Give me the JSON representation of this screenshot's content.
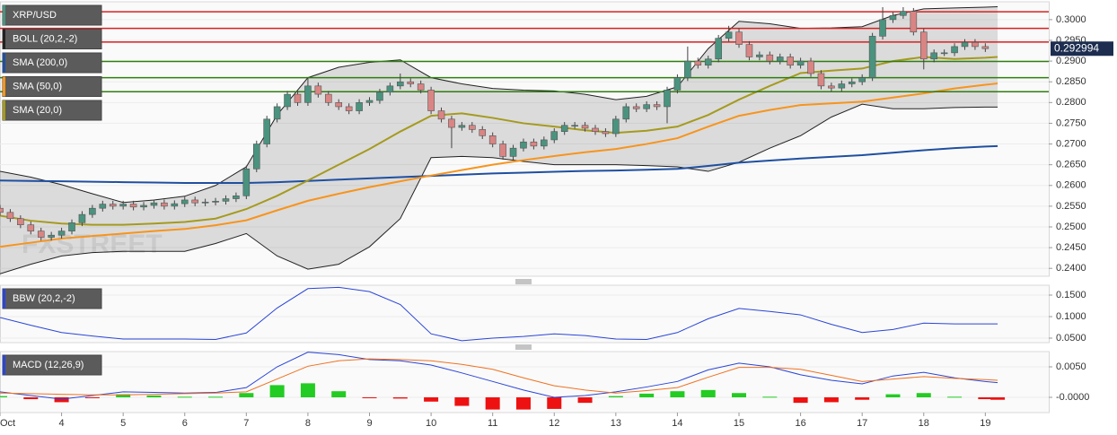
{
  "chart_data": [
    {
      "type": "candlestick",
      "watermark": "FXSTREET",
      "xlim": [
        3,
        20.03
      ],
      "ylim": [
        0.2381,
        0.3043
      ],
      "yticks": [
        {
          "value": 0.24,
          "label": "0.2400"
        },
        {
          "value": 0.245,
          "label": "0.2450"
        },
        {
          "value": 0.25,
          "label": "0.2500"
        },
        {
          "value": 0.255,
          "label": "0.2550"
        },
        {
          "value": 0.26,
          "label": "0.2600"
        },
        {
          "value": 0.265,
          "label": "0.2650"
        },
        {
          "value": 0.27,
          "label": "0.2700"
        },
        {
          "value": 0.275,
          "label": "0.2750"
        },
        {
          "value": 0.28,
          "label": "0.2800"
        },
        {
          "value": 0.285,
          "label": "0.2850"
        },
        {
          "value": 0.29,
          "label": "0.2900"
        },
        {
          "value": 0.295,
          "label": "0.2950"
        },
        {
          "value": 0.3,
          "label": "0.3000"
        }
      ],
      "last_price": 0.292994,
      "levels": [
        {
          "value": 0.3019,
          "color": "#d62020"
        },
        {
          "value": 0.2979,
          "color": "#d62020"
        },
        {
          "value": 0.2946,
          "color": "#d62020"
        },
        {
          "value": 0.2899,
          "color": "#2e7d0f"
        },
        {
          "value": 0.286,
          "color": "#2e7d0f"
        },
        {
          "value": 0.2826,
          "color": "#2e7d0f"
        }
      ],
      "ohlc": {
        "name": "XRP/USD",
        "up_color": "#4a937f",
        "down_color": "#d98584",
        "x": [
          3,
          3.1667,
          3.3333,
          3.5,
          3.6667,
          3.8333,
          4,
          4.1667,
          4.3333,
          4.5,
          4.6667,
          4.8333,
          5,
          5.1667,
          5.3333,
          5.5,
          5.6667,
          5.8333,
          6,
          6.1667,
          6.3333,
          6.5,
          6.6667,
          6.8333,
          7,
          7.1667,
          7.3333,
          7.5,
          7.6667,
          7.8333,
          8,
          8.1667,
          8.3333,
          8.5,
          8.6667,
          8.8333,
          9,
          9.1667,
          9.3333,
          9.5,
          9.6667,
          9.8333,
          10,
          10.1667,
          10.3333,
          10.5,
          10.6667,
          10.8333,
          11,
          11.1667,
          11.3333,
          11.5,
          11.6667,
          11.8333,
          12,
          12.1667,
          12.3333,
          12.5,
          12.6667,
          12.8333,
          13,
          13.1667,
          13.3333,
          13.5,
          13.6667,
          13.8333,
          14,
          14.1667,
          14.3333,
          14.5,
          14.6667,
          14.8333,
          15,
          15.1667,
          15.3333,
          15.5,
          15.6667,
          15.8333,
          16,
          16.1667,
          16.3333,
          16.5,
          16.6667,
          16.8333,
          17,
          17.1667,
          17.3333,
          17.5,
          17.6667,
          17.8333,
          18,
          18.1667,
          18.3333,
          18.5,
          18.6667,
          18.8333,
          19
        ],
        "open": [
          0.2545,
          0.2535,
          0.252,
          0.2505,
          0.249,
          0.2475,
          0.248,
          0.249,
          0.251,
          0.253,
          0.2545,
          0.2555,
          0.255,
          0.2555,
          0.2548,
          0.2552,
          0.2558,
          0.255,
          0.2556,
          0.2565,
          0.2558,
          0.256,
          0.2562,
          0.2568,
          0.2575,
          0.264,
          0.27,
          0.276,
          0.279,
          0.282,
          0.28,
          0.284,
          0.282,
          0.28,
          0.279,
          0.278,
          0.28,
          0.2805,
          0.2825,
          0.284,
          0.285,
          0.2845,
          0.283,
          0.278,
          0.276,
          0.274,
          0.2745,
          0.2735,
          0.272,
          0.27,
          0.267,
          0.269,
          0.2705,
          0.2695,
          0.271,
          0.273,
          0.2745,
          0.2745,
          0.2738,
          0.273,
          0.2725,
          0.276,
          0.279,
          0.2785,
          0.2795,
          0.279,
          0.283,
          0.286,
          0.29,
          0.289,
          0.2905,
          0.2955,
          0.297,
          0.294,
          0.291,
          0.2915,
          0.29,
          0.291,
          0.289,
          0.29,
          0.287,
          0.284,
          0.2835,
          0.2845,
          0.285,
          0.286,
          0.296,
          0.3,
          0.301,
          0.302,
          0.297,
          0.2905,
          0.292,
          0.292,
          0.2935,
          0.2945,
          0.2935
        ],
        "high": [
          0.2553,
          0.2543,
          0.2528,
          0.2513,
          0.2498,
          0.2488,
          0.2498,
          0.2518,
          0.2538,
          0.2553,
          0.2563,
          0.2563,
          0.2563,
          0.2563,
          0.256,
          0.2566,
          0.2566,
          0.2564,
          0.2573,
          0.2573,
          0.2568,
          0.257,
          0.2576,
          0.2583,
          0.2648,
          0.2708,
          0.2768,
          0.2798,
          0.2828,
          0.2828,
          0.286,
          0.2848,
          0.2828,
          0.2808,
          0.2798,
          0.2808,
          0.2813,
          0.2833,
          0.2848,
          0.287,
          0.2858,
          0.2853,
          0.2838,
          0.2788,
          0.2768,
          0.2753,
          0.2753,
          0.2743,
          0.2728,
          0.2708,
          0.2698,
          0.2713,
          0.2713,
          0.2718,
          0.2738,
          0.2753,
          0.2753,
          0.2753,
          0.2746,
          0.2738,
          0.2768,
          0.2798,
          0.2798,
          0.2803,
          0.2803,
          0.2838,
          0.2868,
          0.2935,
          0.2908,
          0.2913,
          0.2963,
          0.2985,
          0.2978,
          0.2948,
          0.2923,
          0.2923,
          0.2918,
          0.2918,
          0.2908,
          0.2908,
          0.2878,
          0.2848,
          0.2853,
          0.2858,
          0.2868,
          0.2968,
          0.303,
          0.3018,
          0.303,
          0.3028,
          0.2978,
          0.2928,
          0.2928,
          0.2943,
          0.2953,
          0.2953,
          0.2943
        ],
        "low": [
          0.2527,
          0.2512,
          0.2497,
          0.2482,
          0.2467,
          0.2467,
          0.2472,
          0.2482,
          0.2502,
          0.2522,
          0.2537,
          0.2542,
          0.2542,
          0.254,
          0.254,
          0.2544,
          0.2542,
          0.2542,
          0.2548,
          0.255,
          0.255,
          0.2552,
          0.2554,
          0.256,
          0.2567,
          0.2632,
          0.2692,
          0.2752,
          0.2782,
          0.2792,
          0.2792,
          0.2812,
          0.2792,
          0.2782,
          0.2772,
          0.2772,
          0.2792,
          0.2797,
          0.2817,
          0.2832,
          0.2837,
          0.2822,
          0.2772,
          0.2752,
          0.269,
          0.2732,
          0.2727,
          0.2712,
          0.2692,
          0.2662,
          0.2662,
          0.2682,
          0.2687,
          0.2687,
          0.2702,
          0.2722,
          0.2737,
          0.273,
          0.2722,
          0.2717,
          0.2717,
          0.2752,
          0.2777,
          0.2777,
          0.2782,
          0.275,
          0.2822,
          0.2852,
          0.2882,
          0.2882,
          0.2897,
          0.2947,
          0.2932,
          0.2902,
          0.2902,
          0.2892,
          0.2892,
          0.2882,
          0.2882,
          0.2862,
          0.2832,
          0.2827,
          0.2827,
          0.2837,
          0.2842,
          0.2852,
          0.2952,
          0.2992,
          0.3002,
          0.2962,
          0.288,
          0.2897,
          0.2912,
          0.2912,
          0.2927,
          0.2927,
          0.2922
        ],
        "close": [
          0.2535,
          0.252,
          0.2505,
          0.249,
          0.2475,
          0.248,
          0.249,
          0.251,
          0.253,
          0.2545,
          0.2555,
          0.255,
          0.2555,
          0.2548,
          0.2552,
          0.2558,
          0.255,
          0.2556,
          0.2565,
          0.2558,
          0.256,
          0.2562,
          0.2568,
          0.2575,
          0.264,
          0.27,
          0.276,
          0.279,
          0.282,
          0.28,
          0.284,
          0.282,
          0.28,
          0.279,
          0.278,
          0.28,
          0.2805,
          0.2825,
          0.284,
          0.285,
          0.2845,
          0.283,
          0.278,
          0.276,
          0.274,
          0.2745,
          0.2735,
          0.272,
          0.27,
          0.267,
          0.269,
          0.2705,
          0.2695,
          0.271,
          0.273,
          0.2745,
          0.2745,
          0.2738,
          0.273,
          0.2725,
          0.276,
          0.279,
          0.2785,
          0.2795,
          0.279,
          0.283,
          0.286,
          0.29,
          0.289,
          0.2905,
          0.2955,
          0.297,
          0.294,
          0.291,
          0.2915,
          0.29,
          0.291,
          0.289,
          0.29,
          0.287,
          0.284,
          0.2835,
          0.2845,
          0.285,
          0.286,
          0.296,
          0.3,
          0.301,
          0.302,
          0.297,
          0.2905,
          0.292,
          0.292,
          0.2935,
          0.2945,
          0.2935,
          0.293
        ]
      },
      "x": [
        3,
        3.5,
        4,
        4.5,
        5,
        5.5,
        6,
        6.5,
        7,
        7.5,
        8,
        8.5,
        9,
        9.5,
        10,
        10.5,
        11,
        11.5,
        12,
        12.5,
        13,
        13.5,
        14,
        14.5,
        15,
        15.5,
        16,
        16.5,
        17,
        17.5,
        18,
        18.5,
        19,
        19.2
      ],
      "series": [
        {
          "name": "BOLL (20,2,-2)",
          "color": "#222222",
          "upper": [
            0.2634,
            0.262,
            0.2602,
            0.258,
            0.2559,
            0.2565,
            0.2574,
            0.26,
            0.2645,
            0.277,
            0.286,
            0.2885,
            0.2897,
            0.2903,
            0.286,
            0.2845,
            0.2834,
            0.283,
            0.2828,
            0.282,
            0.2807,
            0.2815,
            0.2838,
            0.293,
            0.2996,
            0.299,
            0.2979,
            0.298,
            0.2983,
            0.301,
            0.3026,
            0.3028,
            0.303,
            0.3031
          ],
          "lower": [
            0.2387,
            0.241,
            0.243,
            0.2438,
            0.2441,
            0.2441,
            0.2441,
            0.246,
            0.2484,
            0.243,
            0.2398,
            0.241,
            0.2452,
            0.252,
            0.2667,
            0.267,
            0.2667,
            0.2658,
            0.265,
            0.265,
            0.265,
            0.2648,
            0.2645,
            0.2634,
            0.2656,
            0.269,
            0.272,
            0.2765,
            0.2796,
            0.2785,
            0.2785,
            0.2788,
            0.2789,
            0.2789
          ]
        },
        {
          "name": "SMA (200,0)",
          "color": "#1f4fa0",
          "values": [
            0.2612,
            0.2611,
            0.261,
            0.2609,
            0.2608,
            0.2607,
            0.2606,
            0.2606,
            0.2606,
            0.2608,
            0.2611,
            0.2614,
            0.2617,
            0.262,
            0.2623,
            0.2626,
            0.2629,
            0.2631,
            0.2633,
            0.2635,
            0.2636,
            0.2638,
            0.264,
            0.2647,
            0.2655,
            0.266,
            0.2665,
            0.2669,
            0.2673,
            0.2679,
            0.2685,
            0.269,
            0.2694,
            0.2695
          ]
        },
        {
          "name": "SMA (50,0)",
          "color": "#f7941d",
          "values": [
            0.2452,
            0.2462,
            0.2472,
            0.2478,
            0.2484,
            0.249,
            0.2495,
            0.2504,
            0.2516,
            0.254,
            0.2563,
            0.258,
            0.2596,
            0.261,
            0.2624,
            0.2637,
            0.265,
            0.2661,
            0.2671,
            0.268,
            0.2688,
            0.27,
            0.2714,
            0.2742,
            0.2768,
            0.2782,
            0.2794,
            0.2798,
            0.2802,
            0.2812,
            0.2822,
            0.2834,
            0.2843,
            0.2846
          ]
        },
        {
          "name": "SMA (20,0)",
          "color": "#a59a1f",
          "values": [
            0.2527,
            0.2515,
            0.2508,
            0.2505,
            0.2505,
            0.2508,
            0.2512,
            0.252,
            0.2543,
            0.2575,
            0.2612,
            0.265,
            0.2688,
            0.273,
            0.2768,
            0.2774,
            0.2763,
            0.275,
            0.2742,
            0.2733,
            0.2727,
            0.2732,
            0.2742,
            0.277,
            0.2807,
            0.284,
            0.2871,
            0.2877,
            0.2882,
            0.29,
            0.291,
            0.2905,
            0.2908,
            0.291
          ]
        }
      ]
    },
    {
      "type": "line",
      "xlim": [
        3,
        20.03
      ],
      "ylim": [
        0.0396,
        0.1729
      ],
      "yticks": [
        {
          "value": 0.05,
          "label": "0.0500"
        },
        {
          "value": 0.1,
          "label": "0.1000"
        },
        {
          "value": 0.15,
          "label": "0.1500"
        }
      ],
      "x": [
        3,
        3.5,
        4,
        4.5,
        5,
        5.5,
        6,
        6.5,
        7,
        7.5,
        8,
        8.5,
        9,
        9.5,
        10,
        10.5,
        11,
        11.5,
        12,
        12.5,
        13,
        13.5,
        14,
        14.5,
        15,
        15.5,
        16,
        16.5,
        17,
        17.5,
        18,
        18.5,
        19,
        19.2
      ],
      "series": [
        {
          "name": "BBW (20,2,-2)",
          "color": "#2a45d6",
          "values": [
            0.098,
            0.08,
            0.063,
            0.055,
            0.048,
            0.048,
            0.048,
            0.047,
            0.062,
            0.12,
            0.165,
            0.168,
            0.158,
            0.128,
            0.06,
            0.044,
            0.05,
            0.054,
            0.06,
            0.056,
            0.048,
            0.047,
            0.063,
            0.095,
            0.119,
            0.112,
            0.104,
            0.082,
            0.063,
            0.07,
            0.085,
            0.083,
            0.083,
            0.083
          ]
        }
      ]
    },
    {
      "type": "macd",
      "xlim": [
        3,
        20.03
      ],
      "ylim": [
        -0.0025,
        0.0075
      ],
      "yticks": [
        {
          "value": 0,
          "label": "-0.0000"
        },
        {
          "value": 0.005,
          "label": "0.0050"
        }
      ],
      "xticks": [
        {
          "value": 3,
          "label": "Oct"
        },
        4,
        5,
        6,
        7,
        8,
        9,
        10,
        11,
        12,
        13,
        14,
        15,
        16,
        17,
        18,
        19
      ],
      "x": [
        3,
        3.5,
        4,
        4.5,
        5,
        5.5,
        6,
        6.5,
        7,
        7.5,
        8,
        8.5,
        9,
        9.5,
        10,
        10.5,
        11,
        11.5,
        12,
        12.5,
        13,
        13.5,
        14,
        14.5,
        15,
        15.5,
        16,
        16.5,
        17,
        17.5,
        18,
        18.5,
        19,
        19.2
      ],
      "series": [
        {
          "name": "MACD (12,26,9)",
          "color": "#2a45d6",
          "signal_color": "#f07020",
          "up_color": "#22cc22",
          "down_color": "#ee1111",
          "macd": [
            0.0009,
            0.0003,
            -0.0003,
            0.0003,
            0.0009,
            0.0008,
            0.0007,
            0.0008,
            0.0016,
            0.005,
            0.0074,
            0.007,
            0.0062,
            0.006,
            0.0053,
            0.004,
            0.0026,
            0.0012,
            0.0,
            0.0003,
            0.0009,
            0.0017,
            0.0026,
            0.0045,
            0.0056,
            0.005,
            0.0037,
            0.0028,
            0.0022,
            0.0035,
            0.0041,
            0.0032,
            0.0026,
            0.0024
          ],
          "signal": [
            0.0007,
            0.0006,
            0.0005,
            0.0004,
            0.0004,
            0.0005,
            0.0006,
            0.0007,
            0.0009,
            0.003,
            0.0051,
            0.006,
            0.0063,
            0.0062,
            0.006,
            0.0054,
            0.0046,
            0.0032,
            0.0019,
            0.0012,
            0.0007,
            0.0011,
            0.0016,
            0.0033,
            0.0049,
            0.0049,
            0.0046,
            0.0036,
            0.0026,
            0.003,
            0.0034,
            0.0031,
            0.0029,
            0.0028
          ],
          "histogram": [
            0.0002,
            -0.0003,
            -0.0008,
            -0.0001,
            0.0005,
            0.0003,
            0.0001,
            0.0001,
            0.0007,
            0.002,
            0.0023,
            0.001,
            -0.0001,
            -0.0002,
            -0.0007,
            -0.0014,
            -0.002,
            -0.002,
            -0.0019,
            -0.0009,
            0.0002,
            0.0006,
            0.001,
            0.0012,
            0.0007,
            0.0001,
            -0.0009,
            -0.0008,
            -0.0004,
            0.0005,
            0.0007,
            0.0001,
            -0.0003,
            -0.0004
          ]
        }
      ]
    }
  ]
}
